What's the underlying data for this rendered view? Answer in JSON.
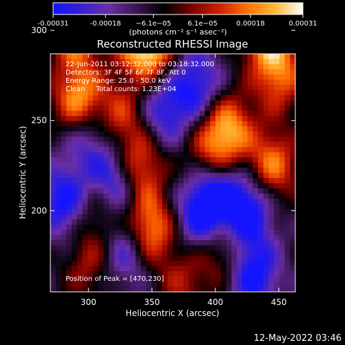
{
  "chart_data": {
    "type": "heatmap",
    "title": "Reconstructed RHESSI Image",
    "xlabel": "Heliocentric X (arcsec)",
    "ylabel": "Heliocentric Y (arcsec)",
    "xlim": [
      270,
      463
    ],
    "ylim": [
      155,
      287
    ],
    "xticks": [
      300,
      350,
      400,
      450
    ],
    "yticks": [
      200,
      250,
      300
    ],
    "colorbar": {
      "min": -0.00031,
      "max": 0.00031,
      "tick_values": [
        -0.00031,
        -0.00018,
        -6.1e-05,
        6.1e-05,
        0.00018,
        0.00031
      ],
      "tick_labels": [
        "-0.00031",
        "-0.00018",
        "−6.1e−05",
        "6.1e−05",
        "0.00018",
        "0.00031"
      ],
      "label": "(photons cm⁻² s⁻¹ asec⁻²)",
      "colors": [
        "#1414ff",
        "#3820d0",
        "#6a2ea8",
        "#3a1650",
        "#000000",
        "#7a0000",
        "#d02000",
        "#ff7000",
        "#ffb838",
        "#ffffff"
      ]
    },
    "annotations": [
      "22-Jun-2011 03:12:32.000 to 03:18:32.000",
      "Detectors: 3F 4F 5F 6F 7F 8F, Att 0",
      "Energy Range: 25.0 - 50.0 keV",
      "Clean     Total counts: 1.23E+04"
    ],
    "peak_label": "Position of Peak = [470,230]",
    "hotspots": [
      {
        "x": 290,
        "y": 300,
        "v": 0.00028
      },
      {
        "x": 292,
        "y": 262,
        "v": 0.0003
      },
      {
        "x": 340,
        "y": 300,
        "v": 0.00026
      },
      {
        "x": 350,
        "y": 290,
        "v": 0.00028
      },
      {
        "x": 325,
        "y": 253,
        "v": 0.00018
      },
      {
        "x": 340,
        "y": 225,
        "v": 0.00024
      },
      {
        "x": 348,
        "y": 190,
        "v": 0.00031
      },
      {
        "x": 310,
        "y": 200,
        "v": 0.00016
      },
      {
        "x": 440,
        "y": 300,
        "v": 0.00031
      },
      {
        "x": 450,
        "y": 275,
        "v": 0.00024
      },
      {
        "x": 410,
        "y": 245,
        "v": 0.00029
      },
      {
        "x": 445,
        "y": 225,
        "v": 0.00026
      },
      {
        "x": 395,
        "y": 230,
        "v": 0.00018
      },
      {
        "x": 405,
        "y": 178,
        "v": 0.00016
      },
      {
        "x": 300,
        "y": 170,
        "v": 0.00014
      },
      {
        "x": 375,
        "y": 160,
        "v": 0.00014
      }
    ],
    "coldspots": [
      {
        "x": 320,
        "y": 215,
        "v": -0.00026
      },
      {
        "x": 385,
        "y": 270,
        "v": -0.00022
      },
      {
        "x": 360,
        "y": 255,
        "v": -0.0002
      },
      {
        "x": 280,
        "y": 205,
        "v": -0.00024
      },
      {
        "x": 425,
        "y": 200,
        "v": -0.00028
      },
      {
        "x": 400,
        "y": 210,
        "v": -0.00024
      },
      {
        "x": 388,
        "y": 197,
        "v": -0.00022
      },
      {
        "x": 430,
        "y": 165,
        "v": -0.00026
      },
      {
        "x": 330,
        "y": 178,
        "v": -0.0002
      },
      {
        "x": 360,
        "y": 315,
        "v": -0.00018
      },
      {
        "x": 300,
        "y": 240,
        "v": -0.00016
      }
    ]
  },
  "footer": {
    "date": "12-May-2022 03:46"
  }
}
